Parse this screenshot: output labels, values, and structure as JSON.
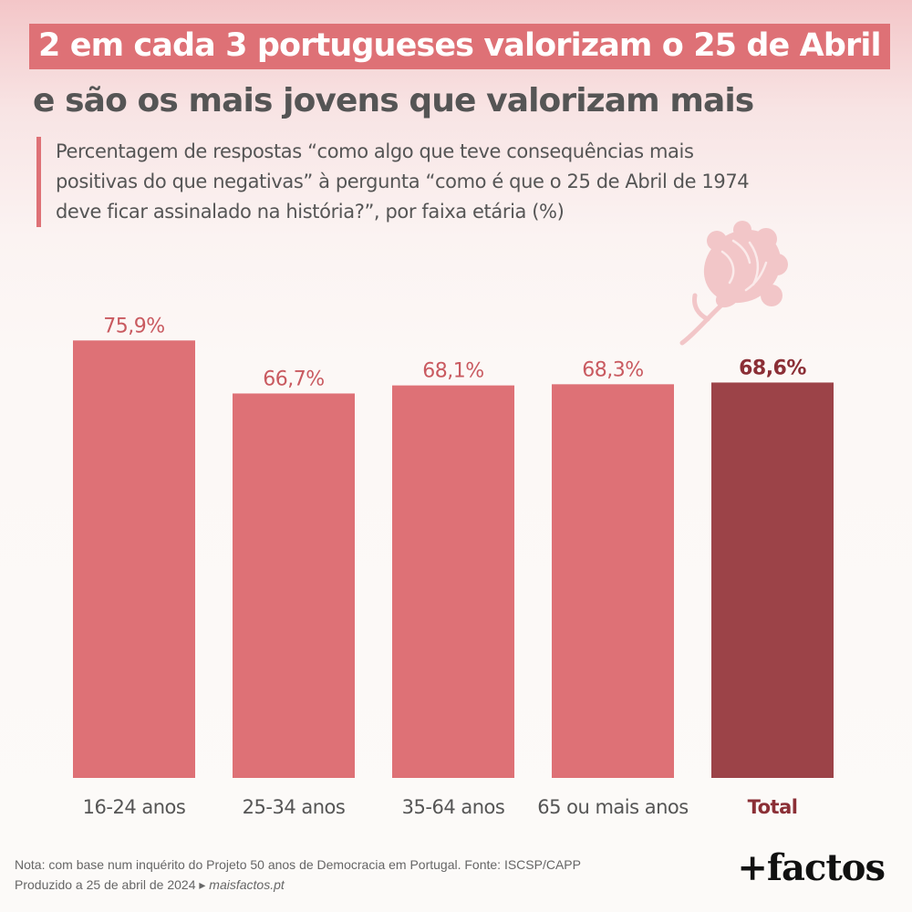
{
  "title": "2 em cada 3 portugueses valorizam o 25 de Abril",
  "subtitle": "e são os mais jovens que valorizam mais",
  "description": [
    "Percentagem de respostas “como algo que teve consequências mais",
    "positivas do que negativas” à pergunta “como é que o 25 de Abril de 1974",
    "deve ficar assinalado na história?”, por faixa etária (%)"
  ],
  "chart_data": {
    "type": "bar",
    "title": "2 em cada 3 portugueses valorizam o 25 de Abril",
    "subtitle": "e são os mais jovens que valorizam mais",
    "categories": [
      "16-24 anos",
      "25-34 anos",
      "35-64 anos",
      "65 ou mais anos",
      "Total"
    ],
    "values": [
      75.9,
      66.7,
      68.1,
      68.3,
      68.6
    ],
    "value_labels": [
      "75,9%",
      "66,7%",
      "68,1%",
      "68,3%",
      "68,6%"
    ],
    "highlight_index": 4,
    "ylim": [
      0,
      100
    ],
    "grid": false,
    "legend": "none",
    "xlabel": "",
    "ylabel": "",
    "colors": {
      "bar": "#de7176",
      "highlight": "#9c4348",
      "label": "#c95a60",
      "highlight_label": "#8b2f36",
      "axis_text": "#555555"
    }
  },
  "footer": {
    "note": "Nota: com base num inquérito do Projeto 50 anos de Democracia em Portugal. Fonte: ISCSP/CAPP",
    "produced": "Produzido a 25 de abril de 2024",
    "arrow": "▸",
    "link": "maisfactos.pt"
  },
  "brand": "+factos",
  "icons": {
    "decoration": "carnation-icon"
  }
}
